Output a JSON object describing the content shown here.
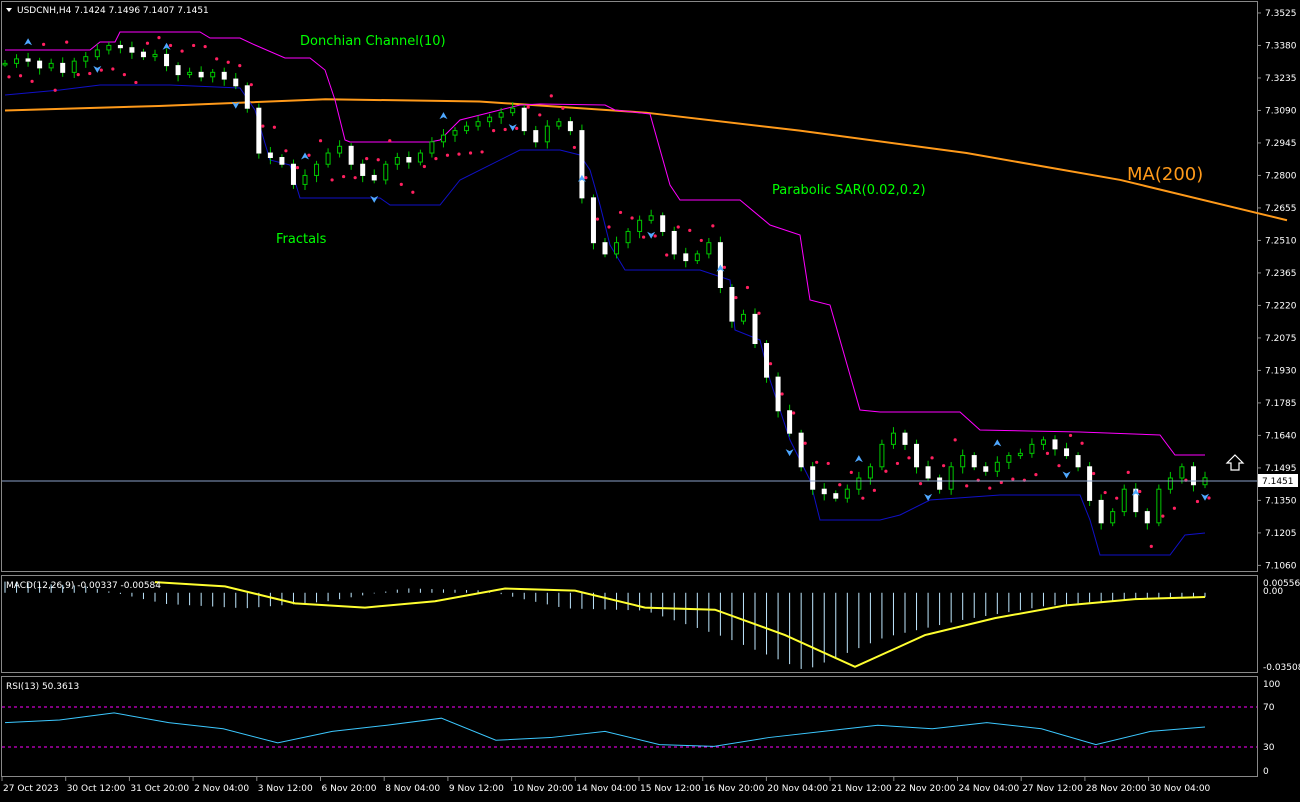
{
  "symbol_header": "USDCNH,H4  7.1424 7.1496 7.1407 7.1451",
  "current_price_label": "7.1451",
  "colors": {
    "background": "#000000",
    "candle_up_wick": "#00c800",
    "candle_body": "#ffffff",
    "donchian_upper": "#ff00ff",
    "donchian_lower": "#1010c8",
    "ma": "#ff9a1a",
    "sar": "#ff2060",
    "fractal": "#4fa8ff",
    "macd_hist": "#bfe8ff",
    "macd_signal": "#ffff30",
    "rsi_line": "#3cc8ff",
    "rsi_levels": "#ff00ff",
    "annotation": "#00ff00"
  },
  "annotations": {
    "donchian": "Donchian Channel(10)",
    "sar": "Parabolic SAR(0.02,0.2)",
    "fractals": "Fractals",
    "ma": "MA(200)"
  },
  "price_axis": [
    7.3525,
    7.338,
    7.3235,
    7.309,
    7.2945,
    7.28,
    7.2655,
    7.251,
    7.2365,
    7.222,
    7.2075,
    7.193,
    7.1785,
    7.164,
    7.1495,
    7.135,
    7.1205,
    7.106
  ],
  "price_axis_labels": [
    "7.3525",
    "7.3380",
    "7.3235",
    "7.3090",
    "7.2945",
    "7.2800",
    "7.2655",
    "7.2510",
    "7.2365",
    "7.2220",
    "7.2075",
    "7.1930",
    "7.1785",
    "7.1640",
    "7.1495",
    "7.1350",
    "7.1205",
    "7.1060"
  ],
  "macd": {
    "label": "MACD(12,26,9) -0.00337 -0.00584",
    "axis_labels": [
      "0.00556",
      "0.00",
      "-0.03508"
    ]
  },
  "rsi": {
    "label": "RSI(13) 50.3613",
    "axis_labels": [
      "100",
      "70",
      "30",
      "0"
    ]
  },
  "time_axis": [
    "27 Oct 2023",
    "30 Oct 12:00",
    "31 Oct 20:00",
    "2 Nov 04:00",
    "3 Nov 12:00",
    "6 Nov 20:00",
    "8 Nov 04:00",
    "9 Nov 12:00",
    "10 Nov 20:00",
    "14 Nov 04:00",
    "15 Nov 12:00",
    "16 Nov 20:00",
    "20 Nov 04:00",
    "21 Nov 12:00",
    "22 Nov 20:00",
    "24 Nov 04:00",
    "27 Nov 12:00",
    "28 Nov 20:00",
    "30 Nov 04:00"
  ],
  "chart_data": {
    "type": "candlestick",
    "title": "USDCNH,H4",
    "ylim": [
      7.1035,
      7.3565
    ],
    "last_price": 7.1451,
    "closes": [
      7.33,
      7.332,
      7.331,
      7.328,
      7.33,
      7.326,
      7.331,
      7.333,
      7.336,
      7.338,
      7.337,
      7.335,
      7.333,
      7.334,
      7.329,
      7.325,
      7.326,
      7.324,
      7.326,
      7.323,
      7.32,
      7.31,
      7.29,
      7.288,
      7.285,
      7.276,
      7.28,
      7.285,
      7.29,
      7.293,
      7.285,
      7.28,
      7.278,
      7.285,
      7.288,
      7.286,
      7.29,
      7.295,
      7.298,
      7.3,
      7.302,
      7.304,
      7.306,
      7.308,
      7.31,
      7.3,
      7.295,
      7.302,
      7.304,
      7.3,
      7.27,
      7.25,
      7.245,
      7.25,
      7.255,
      7.26,
      7.262,
      7.255,
      7.245,
      7.242,
      7.245,
      7.25,
      7.23,
      7.215,
      7.218,
      7.205,
      7.19,
      7.175,
      7.165,
      7.15,
      7.14,
      7.138,
      7.136,
      7.14,
      7.145,
      7.15,
      7.16,
      7.165,
      7.16,
      7.15,
      7.145,
      7.14,
      7.15,
      7.155,
      7.15,
      7.148,
      7.152,
      7.155,
      7.156,
      7.16,
      7.162,
      7.158,
      7.155,
      7.15,
      7.135,
      7.125,
      7.13,
      7.14,
      7.13,
      7.125,
      7.14,
      7.145,
      7.15,
      7.142,
      7.1451
    ],
    "ma200": [
      7.309,
      7.311,
      7.314,
      7.313,
      7.308,
      7.3,
      7.29,
      7.278,
      7.26
    ],
    "ma200_x_fraction": [
      0,
      0.12,
      0.25,
      0.37,
      0.5,
      0.62,
      0.75,
      0.87,
      1
    ],
    "macd_range": [
      -0.03508,
      0.00556
    ],
    "macd_signal": [
      0.005,
      0.003,
      -0.005,
      -0.007,
      -0.004,
      0.002,
      0.001,
      -0.007,
      -0.008,
      -0.02,
      -0.035,
      -0.02,
      -0.012,
      -0.006,
      -0.003,
      -0.002
    ],
    "rsi_levels": [
      70,
      30
    ],
    "rsi": [
      55,
      58,
      66,
      55,
      48,
      32,
      45,
      52,
      60,
      35,
      38,
      45,
      30,
      28,
      38,
      45,
      52,
      48,
      55,
      48,
      30,
      45,
      50
    ]
  }
}
